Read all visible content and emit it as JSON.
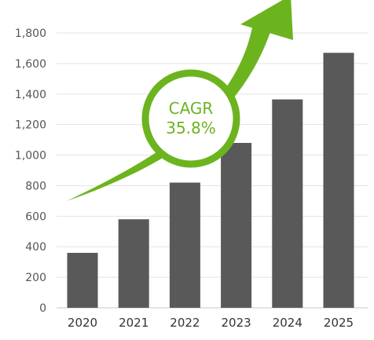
{
  "chart_data": {
    "type": "bar",
    "categories": [
      "2020",
      "2021",
      "2022",
      "2023",
      "2024",
      "2025"
    ],
    "values": [
      360,
      580,
      820,
      1080,
      1365,
      1670
    ],
    "title": "",
    "xlabel": "",
    "ylabel": "",
    "ylim": [
      0,
      1800
    ],
    "yticks": [
      "0",
      "200",
      "400",
      "600",
      "800",
      "1,000",
      "1,200",
      "1,400",
      "1,600",
      "1,800"
    ],
    "grid": true,
    "bar_color": "#595959",
    "annotation": {
      "label": "CAGR",
      "value": "35.8%",
      "color": "#6cb41e"
    }
  }
}
